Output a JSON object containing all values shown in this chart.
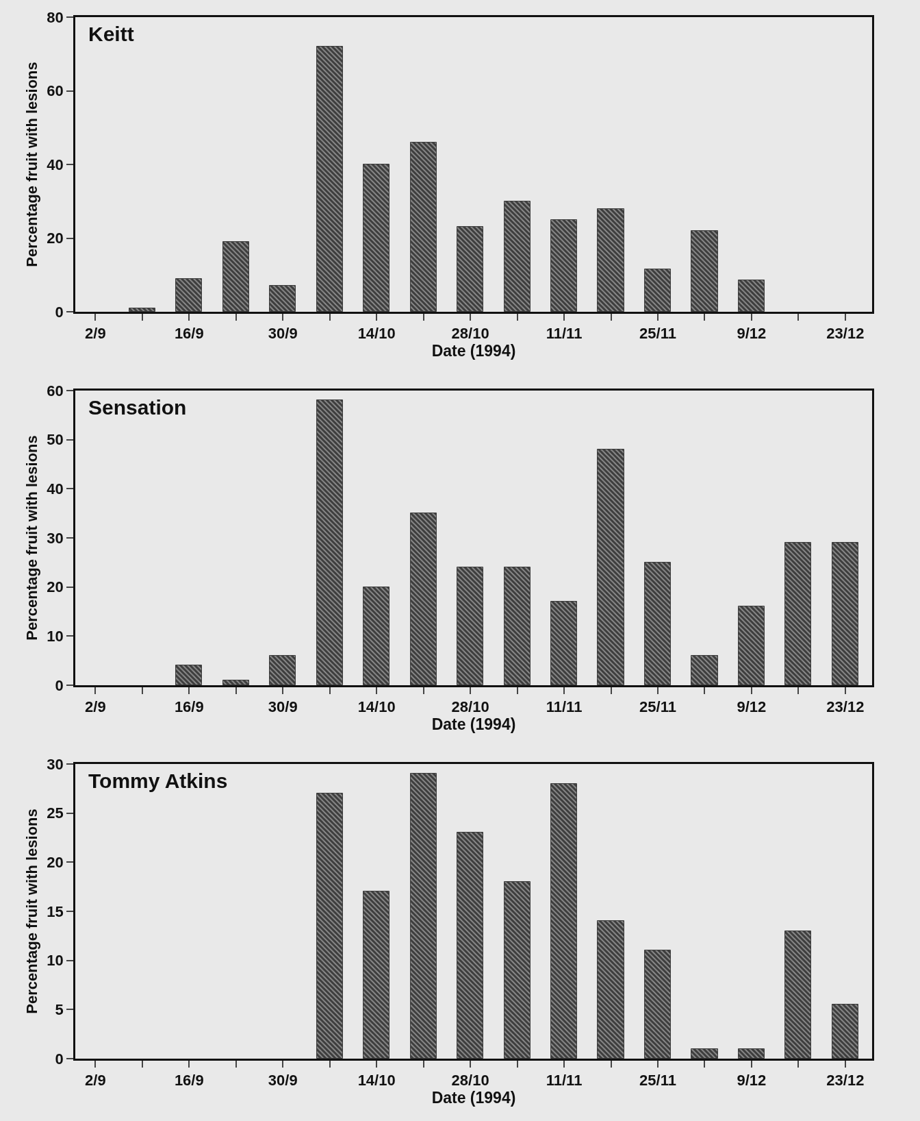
{
  "chart_data": [
    {
      "type": "bar",
      "title": "Keitt",
      "xlabel": "Date (1994)",
      "ylabel": "Percentage fruit with lesions",
      "color": "#3c3c3c",
      "grid": false,
      "legend": false,
      "x": [
        "1994-09-09",
        "1994-09-16",
        "1994-09-23",
        "1994-09-30",
        "1994-10-07",
        "1994-10-14",
        "1994-10-21",
        "1994-10-28",
        "1994-11-04",
        "1994-11-11",
        "1994-11-18",
        "1994-11-25",
        "1994-12-02",
        "1994-12-09"
      ],
      "values": [
        1,
        9,
        19,
        7,
        72,
        40,
        46,
        23,
        30,
        25,
        28,
        11.5,
        22,
        8.5
      ],
      "xlim": [
        "1994-08-30",
        "1994-12-27"
      ],
      "ylim": [
        0,
        80
      ],
      "yticks": [
        0,
        20,
        40,
        60,
        80
      ],
      "xticks": [
        {
          "value": "1994-09-02",
          "label": "2/9"
        },
        {
          "value": "1994-09-09",
          "label": null
        },
        {
          "value": "1994-09-16",
          "label": "16/9"
        },
        {
          "value": "1994-09-23",
          "label": null
        },
        {
          "value": "1994-09-30",
          "label": "30/9"
        },
        {
          "value": "1994-10-07",
          "label": null
        },
        {
          "value": "1994-10-14",
          "label": "14/10"
        },
        {
          "value": "1994-10-21",
          "label": null
        },
        {
          "value": "1994-10-28",
          "label": "28/10"
        },
        {
          "value": "1994-11-04",
          "label": null
        },
        {
          "value": "1994-11-11",
          "label": "11/11"
        },
        {
          "value": "1994-11-18",
          "label": null
        },
        {
          "value": "1994-11-25",
          "label": "25/11"
        },
        {
          "value": "1994-12-02",
          "label": null
        },
        {
          "value": "1994-12-09",
          "label": "9/12"
        },
        {
          "value": "1994-12-16",
          "label": null
        },
        {
          "value": "1994-12-23",
          "label": "23/12"
        }
      ]
    },
    {
      "type": "bar",
      "title": "Sensation",
      "xlabel": "Date (1994)",
      "ylabel": "Percentage fruit with lesions",
      "color": "#3c3c3c",
      "grid": false,
      "legend": false,
      "x": [
        "1994-09-16",
        "1994-09-23",
        "1994-09-30",
        "1994-10-07",
        "1994-10-14",
        "1994-10-21",
        "1994-10-28",
        "1994-11-04",
        "1994-11-11",
        "1994-11-18",
        "1994-11-25",
        "1994-12-02",
        "1994-12-09",
        "1994-12-16",
        "1994-12-23"
      ],
      "values": [
        4,
        1,
        6,
        58,
        20,
        35,
        24,
        24,
        17,
        48,
        25,
        6,
        16,
        29,
        29
      ],
      "xlim": [
        "1994-08-30",
        "1994-12-27"
      ],
      "ylim": [
        0,
        60
      ],
      "yticks": [
        0,
        10,
        20,
        30,
        40,
        50,
        60
      ],
      "xticks": [
        {
          "value": "1994-09-02",
          "label": "2/9"
        },
        {
          "value": "1994-09-09",
          "label": null
        },
        {
          "value": "1994-09-16",
          "label": "16/9"
        },
        {
          "value": "1994-09-23",
          "label": null
        },
        {
          "value": "1994-09-30",
          "label": "30/9"
        },
        {
          "value": "1994-10-07",
          "label": null
        },
        {
          "value": "1994-10-14",
          "label": "14/10"
        },
        {
          "value": "1994-10-21",
          "label": null
        },
        {
          "value": "1994-10-28",
          "label": "28/10"
        },
        {
          "value": "1994-11-04",
          "label": null
        },
        {
          "value": "1994-11-11",
          "label": "11/11"
        },
        {
          "value": "1994-11-18",
          "label": null
        },
        {
          "value": "1994-11-25",
          "label": "25/11"
        },
        {
          "value": "1994-12-02",
          "label": null
        },
        {
          "value": "1994-12-09",
          "label": "9/12"
        },
        {
          "value": "1994-12-16",
          "label": null
        },
        {
          "value": "1994-12-23",
          "label": "23/12"
        }
      ]
    },
    {
      "type": "bar",
      "title": "Tommy Atkins",
      "xlabel": "Date (1994)",
      "ylabel": "Percentage fruit with lesions",
      "color": "#3c3c3c",
      "grid": false,
      "legend": false,
      "x": [
        "1994-10-07",
        "1994-10-14",
        "1994-10-21",
        "1994-10-28",
        "1994-11-04",
        "1994-11-11",
        "1994-11-18",
        "1994-11-25",
        "1994-12-02",
        "1994-12-09",
        "1994-12-16",
        "1994-12-23"
      ],
      "values": [
        27,
        17,
        29,
        23,
        18,
        28,
        14,
        11,
        1,
        1,
        13,
        5.5
      ],
      "xlim": [
        "1994-08-30",
        "1994-12-27"
      ],
      "ylim": [
        0,
        30
      ],
      "yticks": [
        0,
        5,
        10,
        15,
        20,
        25,
        30
      ],
      "xticks": [
        {
          "value": "1994-09-02",
          "label": "2/9"
        },
        {
          "value": "1994-09-09",
          "label": null
        },
        {
          "value": "1994-09-16",
          "label": "16/9"
        },
        {
          "value": "1994-09-23",
          "label": null
        },
        {
          "value": "1994-09-30",
          "label": "30/9"
        },
        {
          "value": "1994-10-07",
          "label": null
        },
        {
          "value": "1994-10-14",
          "label": "14/10"
        },
        {
          "value": "1994-10-21",
          "label": null
        },
        {
          "value": "1994-10-28",
          "label": "28/10"
        },
        {
          "value": "1994-11-04",
          "label": null
        },
        {
          "value": "1994-11-11",
          "label": "11/11"
        },
        {
          "value": "1994-11-18",
          "label": null
        },
        {
          "value": "1994-11-25",
          "label": "25/11"
        },
        {
          "value": "1994-12-02",
          "label": null
        },
        {
          "value": "1994-12-09",
          "label": "9/12"
        },
        {
          "value": "1994-12-16",
          "label": null
        },
        {
          "value": "1994-12-23",
          "label": "23/12"
        }
      ]
    }
  ]
}
